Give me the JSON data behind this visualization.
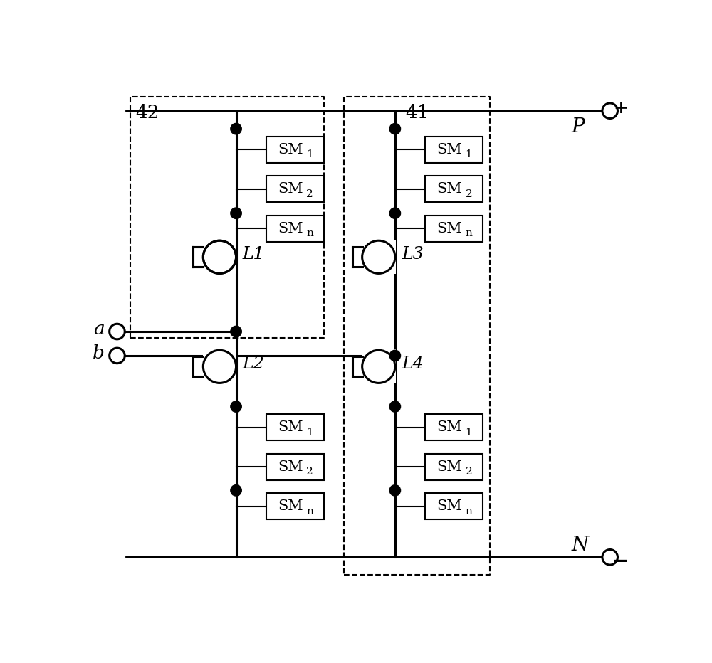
{
  "bg_color": "#ffffff",
  "line_color": "#000000",
  "fig_width": 10.0,
  "fig_height": 9.32,
  "label42": "42",
  "label41": "41",
  "labelP": "P",
  "labelN": "N",
  "labela": "a",
  "labelb": "b",
  "labelL1": "L1",
  "labelL2": "L2",
  "labelL3": "L3",
  "labelL4": "L4"
}
